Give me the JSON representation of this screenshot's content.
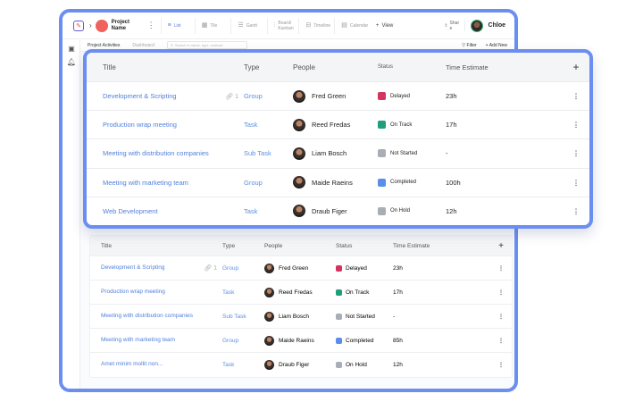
{
  "app": {
    "project_name": "Project Name",
    "user_name": "Chloe",
    "share_label": "Shar e",
    "add_view_label": "View",
    "views": [
      {
        "label": "List",
        "icon": "≡"
      },
      {
        "label": "Tile",
        "icon": "▦"
      },
      {
        "label": "Gantt",
        "icon": "☰"
      },
      {
        "label": "Board/ Kanban",
        "icon": "⫶"
      },
      {
        "label": "Timeline",
        "icon": "⊟"
      },
      {
        "label": "Calendar",
        "icon": "▤"
      }
    ],
    "subtabs": [
      "Project Activities",
      "Dashboard"
    ],
    "search_placeholder": "Search in name, type, subtask",
    "filter_label": "Filter",
    "add_new_label": "Add New"
  },
  "columns": [
    "Title",
    "Type",
    "People",
    "Status",
    "Time Estimate"
  ],
  "front_rows": [
    {
      "title": "Development & Scripting",
      "type": "Group",
      "person": "Fred Green",
      "status": "Delayed",
      "status_color": "#d6335e",
      "estimate": "23h",
      "links": "1"
    },
    {
      "title": "Production wrap meeting",
      "type": "Task",
      "person": "Reed Fredas",
      "status": "On Track",
      "status_color": "#1f9e7a",
      "estimate": "17h",
      "links": ""
    },
    {
      "title": "Meeting with distribution companies",
      "type": "Sub Task",
      "person": "Liam Bosch",
      "status": "Not Started",
      "status_color": "#a9adb5",
      "estimate": "-",
      "links": ""
    },
    {
      "title": "Meeting with marketing team",
      "type": "Group",
      "person": "Maide Raeins",
      "status": "Completed",
      "status_color": "#5b8ee6",
      "estimate": "100h",
      "links": ""
    },
    {
      "title": "Web Development",
      "type": "Task",
      "person": "Draub Figer",
      "status": "On Hold",
      "status_color": "#a9adb5",
      "estimate": "12h",
      "links": ""
    }
  ],
  "back_rows": [
    {
      "title": "Development & Scripting",
      "type": "Group",
      "person": "Fred Green",
      "status": "Delayed",
      "status_color": "#d6335e",
      "estimate": "23h",
      "links": "1"
    },
    {
      "title": "Production wrap meeting",
      "type": "Task",
      "person": "Reed Fredas",
      "status": "On Track",
      "status_color": "#1f9e7a",
      "estimate": "17h",
      "links": ""
    },
    {
      "title": "Meeting with distribution companies",
      "type": "Sub Task",
      "person": "Liam Bosch",
      "status": "Not Started",
      "status_color": "#a9adb5",
      "estimate": "-",
      "links": ""
    },
    {
      "title": "Meeting with marketing team",
      "type": "Group",
      "person": "Maide Raeins",
      "status": "Completed",
      "status_color": "#5b8ee6",
      "estimate": "85h",
      "links": ""
    },
    {
      "title": "Amet minim mollit non...",
      "type": "Task",
      "person": "Draub Figer",
      "status": "On Hold",
      "status_color": "#a9adb5",
      "estimate": "12h",
      "links": ""
    }
  ],
  "colors": {
    "accent": "#6b8ff0",
    "link": "#4f7fdc"
  }
}
